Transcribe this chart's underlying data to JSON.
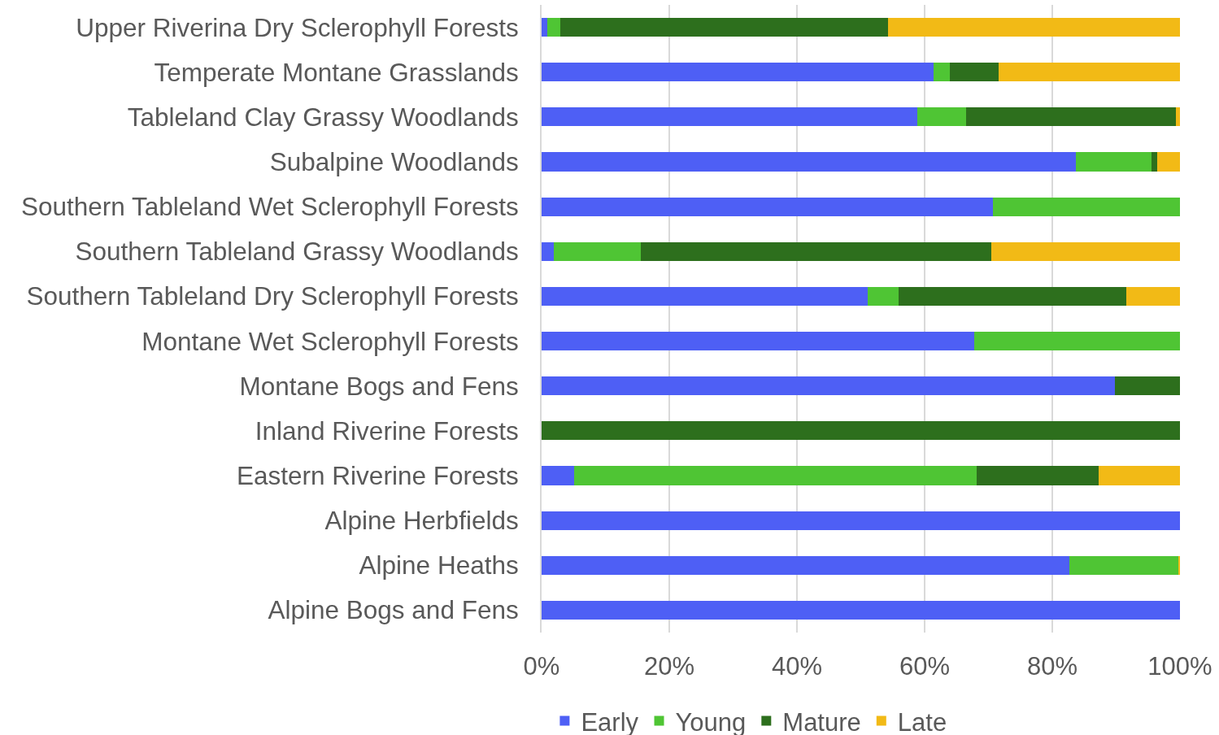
{
  "chart_data": {
    "type": "bar",
    "orientation": "horizontal",
    "stacked": true,
    "categories": [
      "Upper Riverina Dry Sclerophyll Forests",
      "Temperate Montane Grasslands",
      "Tableland Clay Grassy Woodlands",
      "Subalpine Woodlands",
      "Southern Tableland Wet Sclerophyll Forests",
      "Southern Tableland Grassy Woodlands",
      "Southern Tableland Dry Sclerophyll Forests",
      "Montane Wet Sclerophyll Forests",
      "Montane Bogs and Fens",
      "Inland Riverine Forests",
      "Eastern Riverine Forests",
      "Alpine Herbfields",
      "Alpine Heaths",
      "Alpine Bogs and Fens"
    ],
    "series": [
      {
        "name": "Early",
        "color": "#4e5ff5",
        "values": [
          0.9,
          61.4,
          58.9,
          83.7,
          70.7,
          1.9,
          51.1,
          67.8,
          89.8,
          0,
          5.1,
          100,
          82.7,
          100
        ]
      },
      {
        "name": "Young",
        "color": "#4fc534",
        "values": [
          2.0,
          2.5,
          7.6,
          11.8,
          29.3,
          13.6,
          4.8,
          32.2,
          0,
          0,
          63.1,
          0,
          17.0,
          0
        ]
      },
      {
        "name": "Mature",
        "color": "#2d6f1d",
        "values": [
          51.4,
          7.7,
          32.8,
          0.9,
          0,
          54.9,
          35.7,
          0,
          10.2,
          100,
          19.1,
          0,
          0.1,
          0
        ]
      },
      {
        "name": "Late",
        "color": "#f2ba16",
        "values": [
          45.7,
          28.4,
          0.7,
          3.6,
          0,
          29.6,
          8.4,
          0,
          0,
          0,
          12.7,
          0,
          0.2,
          0
        ]
      }
    ],
    "xlim": [
      0,
      100
    ],
    "xticks": [
      {
        "value": 0,
        "label": "0%"
      },
      {
        "value": 20,
        "label": "20%"
      },
      {
        "value": 40,
        "label": "40%"
      },
      {
        "value": 60,
        "label": "60%"
      },
      {
        "value": 80,
        "label": "80%"
      },
      {
        "value": 100,
        "label": "100%"
      }
    ],
    "grid": "x",
    "legend": "bottom"
  }
}
